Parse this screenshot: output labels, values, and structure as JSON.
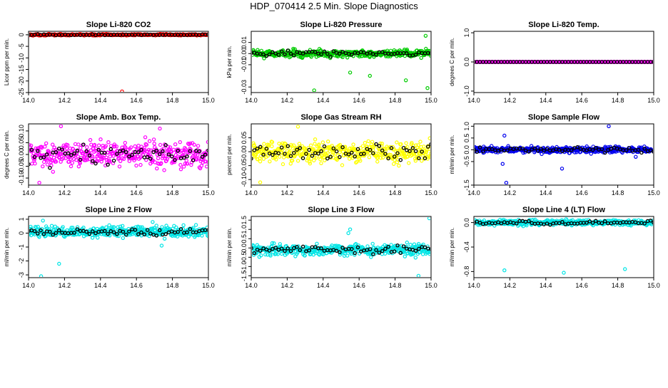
{
  "page_title": "HDP_070414  2.5 Min. Slope Diagnostics",
  "x_axis": {
    "ticks": [
      "14.0",
      "14.2",
      "14.4",
      "14.6",
      "14.8",
      "15.0"
    ],
    "range": [
      14.0,
      15.0
    ]
  },
  "chart_data": [
    {
      "type": "scatter",
      "title": "Slope Li-820 CO2",
      "ylabel": "Licor ppm per min.",
      "ylim": [
        -25,
        1.5
      ],
      "yticks": [
        "-25",
        "-20",
        "-15",
        "-10",
        "-5",
        "0"
      ],
      "ytick_values": [
        -25,
        -20,
        -15,
        -10,
        -5,
        0
      ],
      "color": "#ff0000",
      "center": 0,
      "spread": 0.3,
      "outliers": [
        [
          14.52,
          -24.5
        ]
      ]
    },
    {
      "type": "scatter",
      "title": "Slope Li-820 Pressure",
      "ylabel": "kPa per min.",
      "ylim": [
        -0.035,
        0.02
      ],
      "yticks": [
        "-0.03",
        "-0.01",
        "0.00",
        "0.01"
      ],
      "ytick_values": [
        -0.03,
        -0.01,
        0.0,
        0.01
      ],
      "color": "#00cc00",
      "center": 0,
      "spread": 0.003,
      "outliers": [
        [
          14.35,
          -0.033
        ],
        [
          14.66,
          -0.02
        ],
        [
          14.98,
          -0.031
        ],
        [
          14.97,
          0.016
        ],
        [
          14.55,
          -0.017
        ],
        [
          14.86,
          -0.024
        ]
      ]
    },
    {
      "type": "scatter",
      "title": "Slope Li-820 Temp.",
      "ylabel": "degrees C per min.",
      "ylim": [
        -1.05,
        1.05
      ],
      "yticks": [
        "-1.0",
        "0.0",
        "1.0"
      ],
      "ytick_values": [
        -1.0,
        0.0,
        1.0
      ],
      "color": "#ff00ff",
      "center": 0,
      "spread": 0.0,
      "outliers": []
    },
    {
      "type": "scatter",
      "title": "Slope Amb. Box Temp.",
      "ylabel": "degrees C per min.",
      "ylim": [
        -0.13,
        0.13
      ],
      "yticks": [
        "-0.10",
        "-0.05",
        "0.00",
        "0.05",
        "0.10"
      ],
      "ytick_values": [
        -0.1,
        -0.05,
        0.0,
        0.05,
        0.1
      ],
      "color": "#ff00ff",
      "center": 0,
      "spread": 0.05,
      "outliers": [
        [
          14.06,
          -0.12
        ],
        [
          14.18,
          0.12
        ],
        [
          14.73,
          0.11
        ]
      ]
    },
    {
      "type": "scatter",
      "title": "Slope Gas Stream RH",
      "ylabel": "percent per min.",
      "ylim": [
        -0.12,
        0.1
      ],
      "yticks": [
        "-0.10",
        "-0.05",
        "0.00",
        "0.05"
      ],
      "ytick_values": [
        -0.1,
        -0.05,
        0.0,
        0.05
      ],
      "color": "#ffff00",
      "center": 0,
      "spread": 0.035,
      "outliers": [
        [
          14.26,
          0.09
        ],
        [
          14.05,
          -0.11
        ]
      ]
    },
    {
      "type": "scatter",
      "title": "Slope Sample Flow",
      "ylabel": "ml/min per min.",
      "ylim": [
        -1.5,
        1.1
      ],
      "yticks": [
        "-1.5",
        "-0.5",
        "0.0",
        "0.5",
        "1.0"
      ],
      "ytick_values": [
        -1.5,
        -0.5,
        0.0,
        0.5,
        1.0
      ],
      "color": "#0000ee",
      "center": 0,
      "spread": 0.12,
      "outliers": [
        [
          14.75,
          1.0
        ],
        [
          14.18,
          -1.4
        ],
        [
          14.49,
          -0.8
        ],
        [
          14.17,
          0.6
        ],
        [
          14.16,
          -0.6
        ],
        [
          14.9,
          -0.3
        ]
      ]
    },
    {
      "type": "scatter",
      "title": "Slope Line 2 Flow",
      "ylabel": "ml/min per min.",
      "ylim": [
        -3.2,
        1.2
      ],
      "yticks": [
        "-3",
        "-2",
        "-1",
        "0",
        "1"
      ],
      "ytick_values": [
        -3,
        -2,
        -1,
        0,
        1
      ],
      "color": "#00e5e5",
      "center": 0.1,
      "spread": 0.35,
      "outliers": [
        [
          14.07,
          -3.1
        ],
        [
          14.17,
          -2.2
        ],
        [
          14.08,
          0.9
        ],
        [
          14.74,
          -0.9
        ],
        [
          14.69,
          0.8
        ]
      ]
    },
    {
      "type": "scatter",
      "title": "Slope Line 3 Flow",
      "ylabel": "ml/min per min.",
      "ylim": [
        -1.6,
        1.7
      ],
      "yticks": [
        "-1.5",
        "-1.0",
        "-0.5",
        "0.0",
        "0.5",
        "1.0",
        "1.5"
      ],
      "ytick_values": [
        -1.5,
        -1.0,
        -0.5,
        0.0,
        0.5,
        1.0,
        1.5
      ],
      "color": "#00e5e5",
      "center": -0.1,
      "spread": 0.3,
      "outliers": [
        [
          14.93,
          -1.5
        ],
        [
          14.99,
          1.6
        ],
        [
          14.55,
          1.0
        ],
        [
          14.54,
          0.8
        ]
      ]
    },
    {
      "type": "scatter",
      "title": "Slope Line 4 (LT) Flow",
      "ylabel": "ml/min per min.",
      "ylim": [
        -0.9,
        0.1
      ],
      "yticks": [
        "-0.8",
        "-0.4",
        "0.0"
      ],
      "ytick_values": [
        -0.8,
        -0.4,
        0.0
      ],
      "color": "#00e5e5",
      "center": 0.0,
      "spread": 0.04,
      "outliers": [
        [
          14.17,
          -0.78
        ],
        [
          14.5,
          -0.82
        ],
        [
          14.84,
          -0.76
        ]
      ]
    }
  ]
}
